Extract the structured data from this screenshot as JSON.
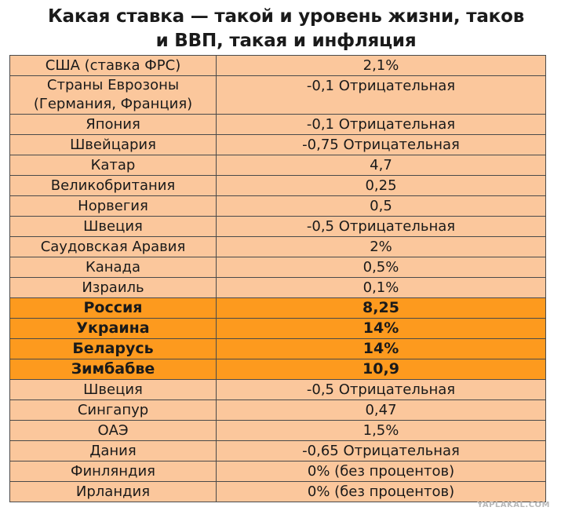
{
  "title": {
    "line1": "Какая ставка — такой и уровень жизни, таков",
    "line2": "и ВВП, такая и инфляция"
  },
  "rows": [
    {
      "country": "США (ставка ФРС)",
      "rate": "2,1%"
    },
    {
      "country_line1": "Страны Еврозоны",
      "country_line2": "(Германия, Франция)",
      "rate": "-0,1 Отрицательная"
    },
    {
      "country": "Япония",
      "rate": "-0,1 Отрицательная"
    },
    {
      "country": "Швейцария",
      "rate": "-0,75 Отрицательная"
    },
    {
      "country": "Катар",
      "rate": "4,7"
    },
    {
      "country": "Великобритания",
      "rate": "0,25"
    },
    {
      "country": "Норвегия",
      "rate": "0,5"
    },
    {
      "country": "Швеция",
      "rate": "-0,5 Отрицательная"
    },
    {
      "country": "Саудовская Аравия",
      "rate": "2%"
    },
    {
      "country": "Канада",
      "rate": "0,5%"
    },
    {
      "country": "Израиль",
      "rate": "0,1%"
    },
    {
      "country": "Россия",
      "rate": "8,25"
    },
    {
      "country": "Украина",
      "rate": "14%"
    },
    {
      "country": "Беларусь",
      "rate": "14%"
    },
    {
      "country": "Зимбабве",
      "rate": "10,9"
    },
    {
      "country": "Швеция",
      "rate": "-0,5 Отрицательная"
    },
    {
      "country": "Сингапур",
      "rate": "0,47"
    },
    {
      "country": "ОАЭ",
      "rate": "1,5%"
    },
    {
      "country": "Дания",
      "rate": "-0,65 Отрицательная"
    },
    {
      "country": "Финляндия",
      "rate": "0% (без процентов)"
    },
    {
      "country": "Ирландия",
      "rate": "0% (без процентов)"
    }
  ],
  "colors": {
    "row_background": "#fbc79c",
    "highlight_background": "#fd9a1e",
    "border": "#4a4a4a"
  },
  "watermark": "YAPLAKAL.COM"
}
